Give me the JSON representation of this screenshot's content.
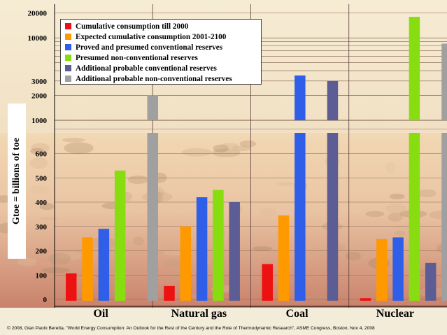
{
  "chart_data": {
    "type": "bar",
    "categories": [
      "Oil",
      "Natural gas",
      "Coal",
      "Nuclear"
    ],
    "series": [
      {
        "name": "Cumulative consumption till 2000",
        "color": "#ee1111",
        "values": [
          107,
          55,
          145,
          5
        ]
      },
      {
        "name": "Expected cumulative consumption 2001-2100",
        "color": "#ff9900",
        "values": [
          255,
          300,
          345,
          248
        ]
      },
      {
        "name": "Proved and presumed conventional reserves",
        "color": "#2f5fe8",
        "values": [
          290,
          420,
          3500,
          255
        ]
      },
      {
        "name": "Presumed non-conventional reserves",
        "color": "#88dd11",
        "values": [
          530,
          450,
          null,
          18000
        ]
      },
      {
        "name": "Additional probable conventional reserves",
        "color": "#5d5d95",
        "values": [
          null,
          400,
          3000,
          150
        ]
      },
      {
        "name": "Additional probable non-conventional reserves",
        "color": "#a0a0a0",
        "values": [
          2000,
          null,
          null,
          8500
        ]
      }
    ],
    "ylabel": "Gtoe = billions of toe",
    "ylim": [
      0,
      20000
    ],
    "axis_break": [
      700,
      1000
    ],
    "y_ticks_lower": [
      "0",
      "100",
      "200",
      "300",
      "400",
      "500",
      "600"
    ],
    "y_ticks_upper": [
      "1000",
      "2000",
      "3000",
      "10000",
      "20000"
    ],
    "upper_scale": "log",
    "grid": true,
    "legend_position": "top-left"
  },
  "footer": "© 2008, Gian Paolo Beretta, \"World Energy Consumption: An Outlook for the Rest of the Century and the Role of Thermodynamic Research\", ASME Congress, Boston, Nov 4, 2008"
}
